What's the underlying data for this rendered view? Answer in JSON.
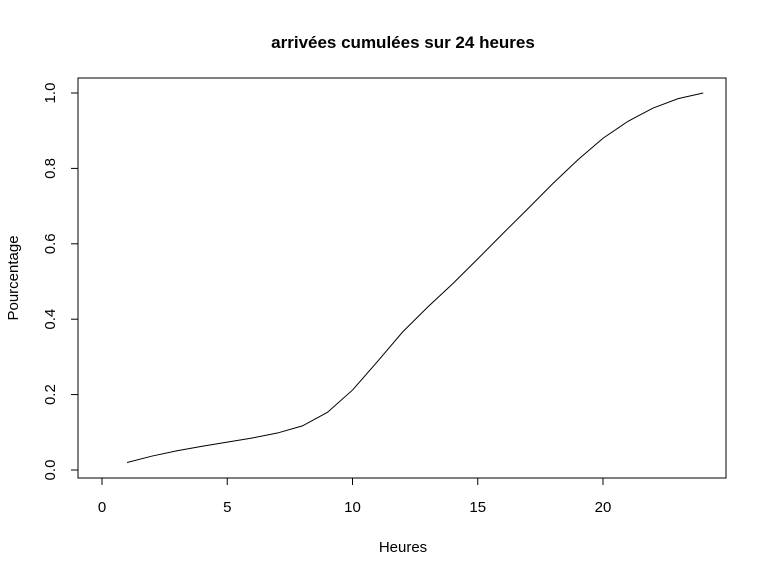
{
  "chart_data": {
    "type": "line",
    "title": "arrivées cumulées sur 24 heures",
    "xlabel": "Heures",
    "ylabel": "Pourcentage",
    "xlim": [
      0,
      24
    ],
    "ylim": [
      0,
      1
    ],
    "x_ticks": [
      "0",
      "5",
      "10",
      "15",
      "20"
    ],
    "y_ticks": [
      "0.0",
      "0.2",
      "0.4",
      "0.6",
      "0.8",
      "1.0"
    ],
    "grid": false,
    "series": [
      {
        "x": [
          1,
          2,
          3,
          4,
          5,
          6,
          7,
          8,
          9,
          10,
          11,
          12,
          13,
          14,
          15,
          16,
          17,
          18,
          19,
          20,
          21,
          22,
          23,
          24
        ],
        "y": [
          0.02,
          0.037,
          0.051,
          0.063,
          0.074,
          0.085,
          0.098,
          0.117,
          0.153,
          0.212,
          0.288,
          0.366,
          0.432,
          0.494,
          0.56,
          0.627,
          0.693,
          0.76,
          0.823,
          0.88,
          0.925,
          0.96,
          0.985,
          1.0
        ]
      }
    ]
  }
}
